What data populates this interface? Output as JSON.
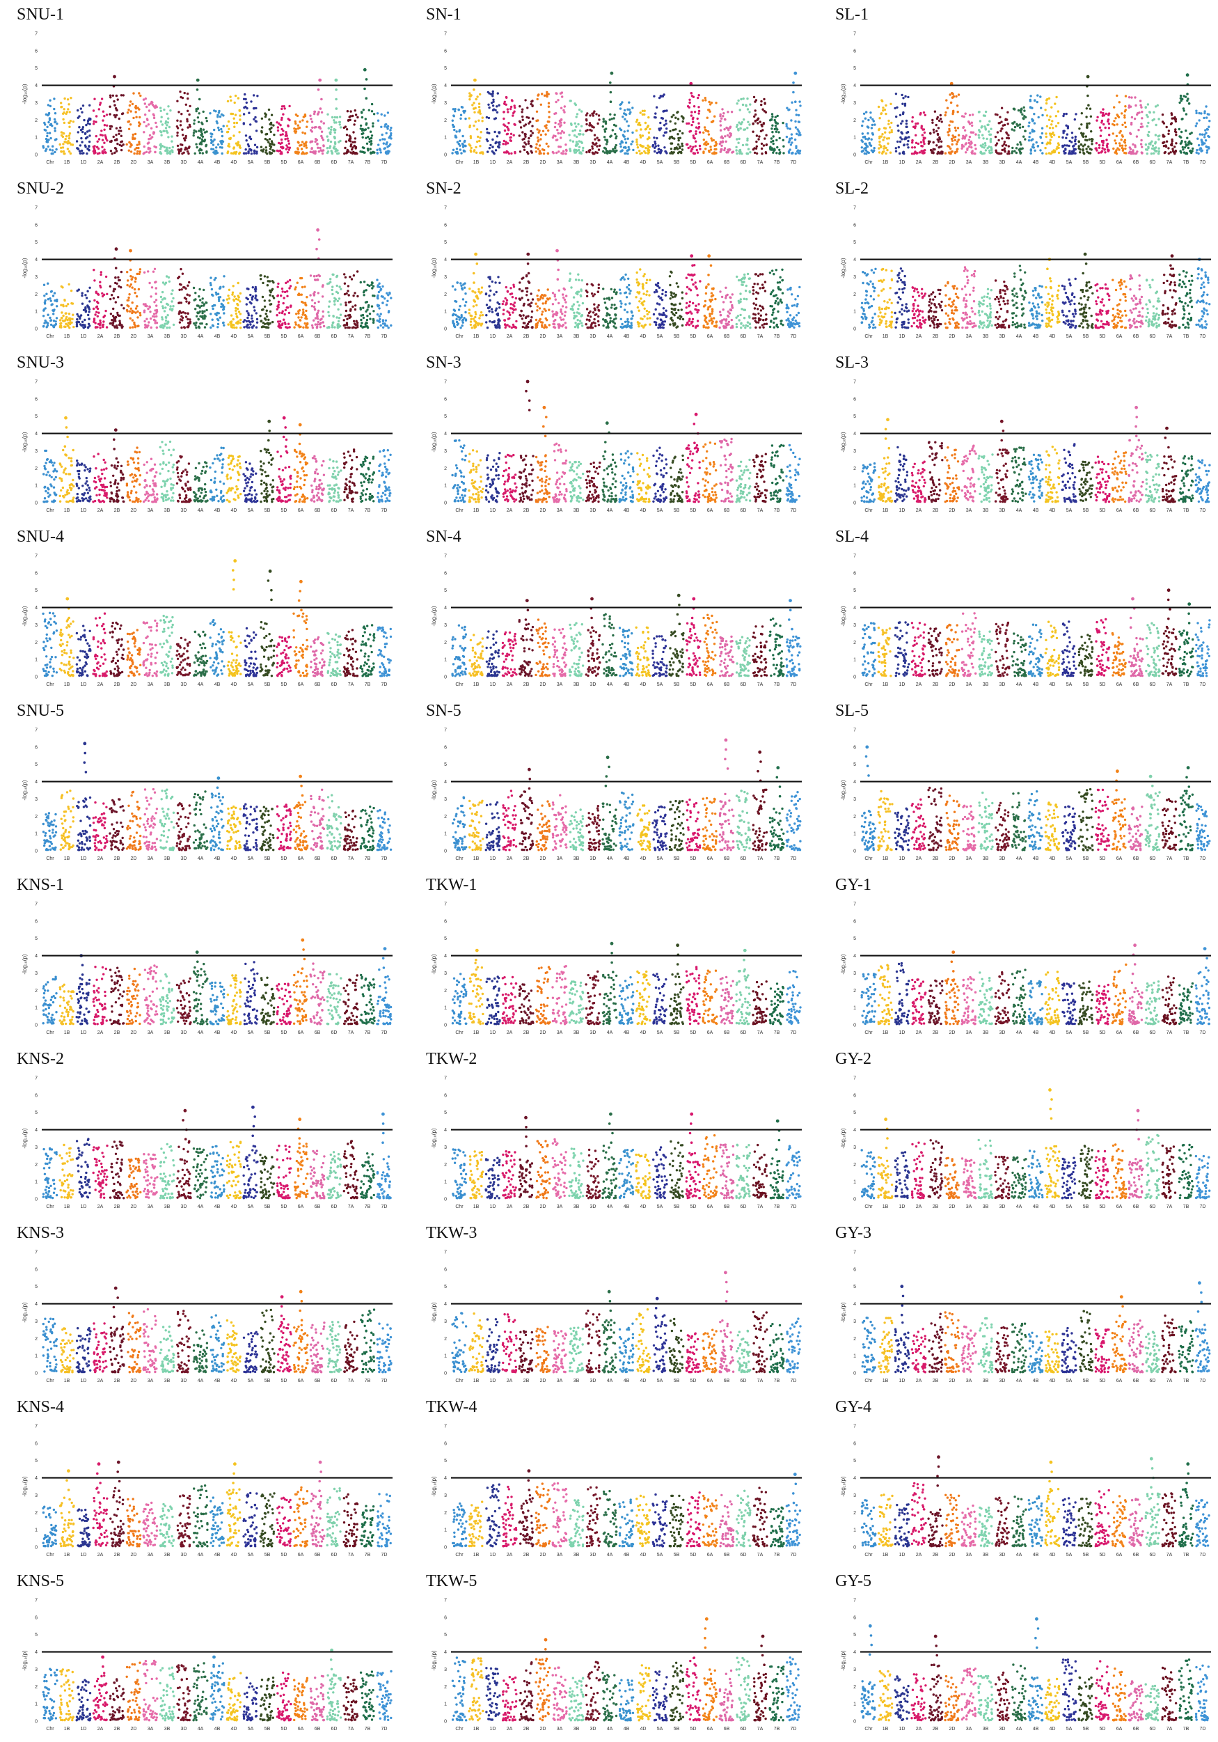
{
  "chromosomes": [
    "Chr",
    "1B",
    "1D",
    "2A",
    "2B",
    "2D",
    "3A",
    "3B",
    "3D",
    "4A",
    "4B",
    "4D",
    "5A",
    "5B",
    "5D",
    "6A",
    "6B",
    "6D",
    "7A",
    "7B",
    "7D"
  ],
  "chrom_colors": [
    "#3a8fd0",
    "#f6c025",
    "#2a3590",
    "#d81b6a",
    "#6b1428",
    "#f07a1a",
    "#e56aa8",
    "#7ed3ae",
    "#751528",
    "#2a6e48",
    "#3a92cf",
    "#f4c31f",
    "#2d3396",
    "#364b22",
    "#d8176c",
    "#f28218",
    "#df68a8",
    "#7fd1ac",
    "#6a1121",
    "#1f6e4a",
    "#3e93d6"
  ],
  "ylabel": "-log₁₀(p)",
  "chart_data": [
    {
      "type": "scatter",
      "title": "SNU-1",
      "ylim": [
        0,
        7
      ],
      "threshold": 4.0,
      "peaks": [
        {
          "chrom": "2B",
          "y": 4.5
        },
        {
          "chrom": "4A",
          "y": 4.3
        },
        {
          "chrom": "6B",
          "y": 4.3
        },
        {
          "chrom": "6D",
          "y": 4.3
        },
        {
          "chrom": "7B",
          "y": 4.9
        }
      ]
    },
    {
      "type": "scatter",
      "title": "SN-1",
      "ylim": [
        0,
        7
      ],
      "threshold": 4.0,
      "peaks": [
        {
          "chrom": "1B",
          "y": 4.3
        },
        {
          "chrom": "4A",
          "y": 4.7
        },
        {
          "chrom": "5D",
          "y": 4.1
        },
        {
          "chrom": "7D",
          "y": 4.7
        }
      ]
    },
    {
      "type": "scatter",
      "title": "SL-1",
      "ylim": [
        0,
        7
      ],
      "threshold": 4.0,
      "peaks": [
        {
          "chrom": "5B",
          "y": 4.5
        },
        {
          "chrom": "7B",
          "y": 4.6
        },
        {
          "chrom": "2D",
          "y": 4.1
        }
      ]
    },
    {
      "type": "scatter",
      "title": "SNU-2",
      "ylim": [
        0,
        7
      ],
      "threshold": 4.0,
      "peaks": [
        {
          "chrom": "2B",
          "y": 4.6
        },
        {
          "chrom": "2D",
          "y": 4.5
        },
        {
          "chrom": "6B",
          "y": 5.7
        }
      ]
    },
    {
      "type": "scatter",
      "title": "SN-2",
      "ylim": [
        0,
        7
      ],
      "threshold": 4.0,
      "peaks": [
        {
          "chrom": "1B",
          "y": 4.3
        },
        {
          "chrom": "2B",
          "y": 4.3
        },
        {
          "chrom": "3A",
          "y": 4.5
        },
        {
          "chrom": "5D",
          "y": 4.2
        },
        {
          "chrom": "6A",
          "y": 4.2
        }
      ]
    },
    {
      "type": "scatter",
      "title": "SL-2",
      "ylim": [
        0,
        7
      ],
      "threshold": 4.0,
      "peaks": [
        {
          "chrom": "4D",
          "y": 4.0
        },
        {
          "chrom": "5B",
          "y": 4.3
        },
        {
          "chrom": "7A",
          "y": 4.2
        },
        {
          "chrom": "7D",
          "y": 4.0
        }
      ]
    },
    {
      "type": "scatter",
      "title": "SNU-3",
      "ylim": [
        0,
        7
      ],
      "threshold": 4.0,
      "peaks": [
        {
          "chrom": "1B",
          "y": 4.9
        },
        {
          "chrom": "5B",
          "y": 4.7
        },
        {
          "chrom": "5D",
          "y": 4.9
        },
        {
          "chrom": "6A",
          "y": 4.5
        },
        {
          "chrom": "2B",
          "y": 4.2
        }
      ]
    },
    {
      "type": "scatter",
      "title": "SN-3",
      "ylim": [
        0,
        7
      ],
      "threshold": 4.0,
      "peaks": [
        {
          "chrom": "2B",
          "y": 7.0
        },
        {
          "chrom": "2D",
          "y": 5.5
        },
        {
          "chrom": "5D",
          "y": 5.1
        },
        {
          "chrom": "4A",
          "y": 4.6
        }
      ]
    },
    {
      "type": "scatter",
      "title": "SL-3",
      "ylim": [
        0,
        7
      ],
      "threshold": 4.0,
      "peaks": [
        {
          "chrom": "1B",
          "y": 4.8
        },
        {
          "chrom": "3D",
          "y": 4.7
        },
        {
          "chrom": "6B",
          "y": 5.5
        },
        {
          "chrom": "7A",
          "y": 4.3
        }
      ]
    },
    {
      "type": "scatter",
      "title": "SNU-4",
      "ylim": [
        0,
        7
      ],
      "threshold": 4.0,
      "peaks": [
        {
          "chrom": "1B",
          "y": 4.5
        },
        {
          "chrom": "4D",
          "y": 6.7
        },
        {
          "chrom": "5B",
          "y": 6.1
        },
        {
          "chrom": "6A",
          "y": 5.5
        }
      ]
    },
    {
      "type": "scatter",
      "title": "SN-4",
      "ylim": [
        0,
        7
      ],
      "threshold": 4.0,
      "peaks": [
        {
          "chrom": "2B",
          "y": 4.4
        },
        {
          "chrom": "3D",
          "y": 4.5
        },
        {
          "chrom": "5B",
          "y": 4.7
        },
        {
          "chrom": "5D",
          "y": 4.5
        },
        {
          "chrom": "7D",
          "y": 4.4
        }
      ]
    },
    {
      "type": "scatter",
      "title": "SL-4",
      "ylim": [
        0,
        7
      ],
      "threshold": 4.0,
      "peaks": [
        {
          "chrom": "6B",
          "y": 4.5
        },
        {
          "chrom": "7A",
          "y": 5.0
        },
        {
          "chrom": "7B",
          "y": 4.2
        }
      ]
    },
    {
      "type": "scatter",
      "title": "SNU-5",
      "ylim": [
        0,
        7
      ],
      "threshold": 4.0,
      "peaks": [
        {
          "chrom": "1D",
          "y": 6.2
        },
        {
          "chrom": "4B",
          "y": 4.2
        },
        {
          "chrom": "6A",
          "y": 4.3
        }
      ]
    },
    {
      "type": "scatter",
      "title": "SN-5",
      "ylim": [
        0,
        7
      ],
      "threshold": 4.0,
      "peaks": [
        {
          "chrom": "2B",
          "y": 4.7
        },
        {
          "chrom": "4A",
          "y": 5.4
        },
        {
          "chrom": "6B",
          "y": 6.4
        },
        {
          "chrom": "7A",
          "y": 5.7
        },
        {
          "chrom": "7B",
          "y": 4.8
        }
      ]
    },
    {
      "type": "scatter",
      "title": "SL-5",
      "ylim": [
        0,
        7
      ],
      "threshold": 4.0,
      "peaks": [
        {
          "chrom": "Chr",
          "y": 6.0
        },
        {
          "chrom": "6A",
          "y": 4.6
        },
        {
          "chrom": "6D",
          "y": 4.3
        },
        {
          "chrom": "7B",
          "y": 4.8
        }
      ]
    },
    {
      "type": "scatter",
      "title": "KNS-1",
      "ylim": [
        0,
        7
      ],
      "threshold": 4.0,
      "peaks": [
        {
          "chrom": "1D",
          "y": 4.0
        },
        {
          "chrom": "4A",
          "y": 4.2
        },
        {
          "chrom": "6A",
          "y": 4.9
        },
        {
          "chrom": "7D",
          "y": 4.4
        }
      ]
    },
    {
      "type": "scatter",
      "title": "TKW-1",
      "ylim": [
        0,
        7
      ],
      "threshold": 4.0,
      "peaks": [
        {
          "chrom": "1B",
          "y": 4.3
        },
        {
          "chrom": "4A",
          "y": 4.7
        },
        {
          "chrom": "5B",
          "y": 4.6
        },
        {
          "chrom": "6D",
          "y": 4.3
        }
      ]
    },
    {
      "type": "scatter",
      "title": "GY-1",
      "ylim": [
        0,
        7
      ],
      "threshold": 4.0,
      "peaks": [
        {
          "chrom": "2D",
          "y": 4.2
        },
        {
          "chrom": "6B",
          "y": 4.6
        },
        {
          "chrom": "7D",
          "y": 4.4
        }
      ]
    },
    {
      "type": "scatter",
      "title": "KNS-2",
      "ylim": [
        0,
        7
      ],
      "threshold": 4.0,
      "peaks": [
        {
          "chrom": "3D",
          "y": 5.1
        },
        {
          "chrom": "5A",
          "y": 5.3
        },
        {
          "chrom": "6A",
          "y": 4.6
        },
        {
          "chrom": "7D",
          "y": 4.9
        }
      ]
    },
    {
      "type": "scatter",
      "title": "TKW-2",
      "ylim": [
        0,
        7
      ],
      "threshold": 4.0,
      "peaks": [
        {
          "chrom": "4A",
          "y": 4.9
        },
        {
          "chrom": "5D",
          "y": 4.9
        },
        {
          "chrom": "2B",
          "y": 4.7
        },
        {
          "chrom": "7B",
          "y": 4.5
        }
      ]
    },
    {
      "type": "scatter",
      "title": "GY-2",
      "ylim": [
        0,
        7
      ],
      "threshold": 4.0,
      "peaks": [
        {
          "chrom": "4D",
          "y": 6.3
        },
        {
          "chrom": "6B",
          "y": 5.1
        },
        {
          "chrom": "1B",
          "y": 4.6
        }
      ]
    },
    {
      "type": "scatter",
      "title": "KNS-3",
      "ylim": [
        0,
        7
      ],
      "threshold": 4.0,
      "peaks": [
        {
          "chrom": "2B",
          "y": 4.9
        },
        {
          "chrom": "6A",
          "y": 4.7
        },
        {
          "chrom": "5D",
          "y": 4.4
        }
      ]
    },
    {
      "type": "scatter",
      "title": "TKW-3",
      "ylim": [
        0,
        7
      ],
      "threshold": 4.0,
      "peaks": [
        {
          "chrom": "4A",
          "y": 4.7
        },
        {
          "chrom": "6B",
          "y": 5.8
        },
        {
          "chrom": "5A",
          "y": 4.3
        }
      ]
    },
    {
      "type": "scatter",
      "title": "GY-3",
      "ylim": [
        0,
        7
      ],
      "threshold": 4.0,
      "peaks": [
        {
          "chrom": "1D",
          "y": 5.0
        },
        {
          "chrom": "7D",
          "y": 5.2
        },
        {
          "chrom": "6A",
          "y": 4.4
        }
      ]
    },
    {
      "type": "scatter",
      "title": "KNS-4",
      "ylim": [
        0,
        7
      ],
      "threshold": 4.0,
      "peaks": [
        {
          "chrom": "2A",
          "y": 4.8
        },
        {
          "chrom": "2B",
          "y": 4.9
        },
        {
          "chrom": "4D",
          "y": 4.8
        },
        {
          "chrom": "6B",
          "y": 4.9
        },
        {
          "chrom": "1B",
          "y": 4.4
        }
      ]
    },
    {
      "type": "scatter",
      "title": "TKW-4",
      "ylim": [
        0,
        7
      ],
      "threshold": 4.0,
      "peaks": [
        {
          "chrom": "2B",
          "y": 4.4
        },
        {
          "chrom": "7D",
          "y": 4.2
        }
      ]
    },
    {
      "type": "scatter",
      "title": "GY-4",
      "ylim": [
        0,
        7
      ],
      "threshold": 4.0,
      "peaks": [
        {
          "chrom": "2B",
          "y": 5.2
        },
        {
          "chrom": "4D",
          "y": 4.9
        },
        {
          "chrom": "7B",
          "y": 4.8
        },
        {
          "chrom": "6D",
          "y": 5.1
        }
      ]
    },
    {
      "type": "scatter",
      "title": "KNS-5",
      "ylim": [
        0,
        7
      ],
      "threshold": 4.0,
      "peaks": [
        {
          "chrom": "2A",
          "y": 3.7
        },
        {
          "chrom": "6D",
          "y": 4.1
        },
        {
          "chrom": "4B",
          "y": 3.7
        }
      ]
    },
    {
      "type": "scatter",
      "title": "TKW-5",
      "ylim": [
        0,
        7
      ],
      "threshold": 4.0,
      "peaks": [
        {
          "chrom": "2D",
          "y": 4.7
        },
        {
          "chrom": "6A",
          "y": 5.9
        },
        {
          "chrom": "7A",
          "y": 4.9
        }
      ]
    },
    {
      "type": "scatter",
      "title": "GY-5",
      "ylim": [
        0,
        7
      ],
      "threshold": 4.0,
      "peaks": [
        {
          "chrom": "4B",
          "y": 5.9
        },
        {
          "chrom": "Chr",
          "y": 5.5
        },
        {
          "chrom": "2B",
          "y": 4.9
        }
      ]
    }
  ]
}
